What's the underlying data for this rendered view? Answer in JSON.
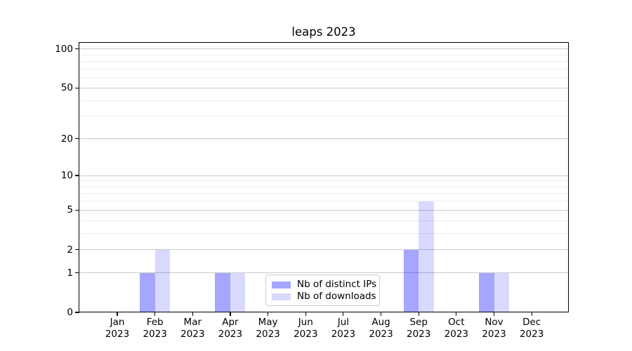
{
  "title": "leaps 2023",
  "colors": {
    "series_distinct_ips": "rgba(0,0,255,0.35)",
    "series_downloads": "rgba(0,0,255,0.15)",
    "grid_major": "#c9c9c9",
    "grid_minor": "#ededed",
    "axis_spine": "#000000",
    "legend_border": "#cccccc"
  },
  "chart_data": {
    "type": "bar",
    "title": "leaps 2023",
    "categories": [
      "Jan",
      "Feb",
      "Mar",
      "Apr",
      "May",
      "Jun",
      "Jul",
      "Aug",
      "Sep",
      "Oct",
      "Nov",
      "Dec"
    ],
    "category_year": "2023",
    "series": [
      {
        "name": "Nb of distinct IPs",
        "color": "rgba(0,0,255,0.35)",
        "values": [
          0,
          1,
          0,
          1,
          0,
          0,
          0,
          0,
          2,
          0,
          1,
          0
        ]
      },
      {
        "name": "Nb of downloads",
        "color": "rgba(0,0,255,0.15)",
        "values": [
          0,
          2,
          0,
          1,
          0,
          0,
          0,
          0,
          6,
          0,
          1,
          0
        ]
      }
    ],
    "xlabel": "",
    "ylabel": "",
    "yscale": "log1p",
    "ylim": [
      0,
      113
    ],
    "y_major_ticks": [
      0,
      1,
      2,
      5,
      10,
      20,
      50,
      100
    ],
    "y_minor_gridlines": [
      3,
      4,
      6,
      7,
      8,
      9,
      30,
      40,
      60,
      70,
      80,
      90
    ],
    "grid": true,
    "legend_position": "lower center"
  }
}
